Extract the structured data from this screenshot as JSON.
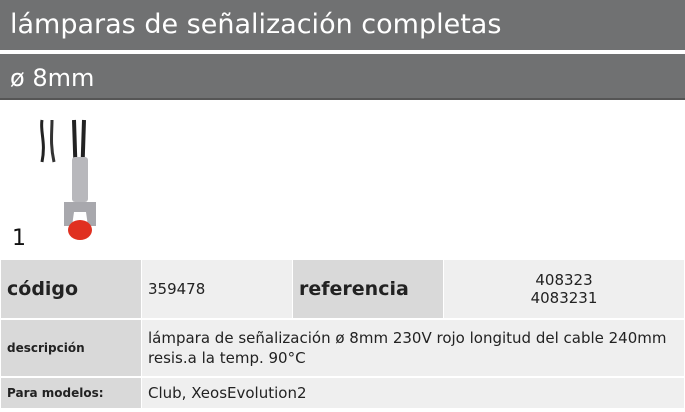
{
  "header": {
    "title": "lámparas de señalización completas",
    "subtitle": "ø 8mm"
  },
  "image": {
    "label": "1"
  },
  "table": {
    "code_label": "código",
    "code": "359478",
    "reference_label": "referencia",
    "references": [
      "408323",
      "4083231"
    ],
    "description_label": "descripción",
    "description": "lámpara de señalización  ø 8mm 230V rojo longitud del cable 240mm resis.a la temp. 90°C",
    "models_label": "Para modelos:",
    "models": "Club, XeosEvolution2"
  }
}
